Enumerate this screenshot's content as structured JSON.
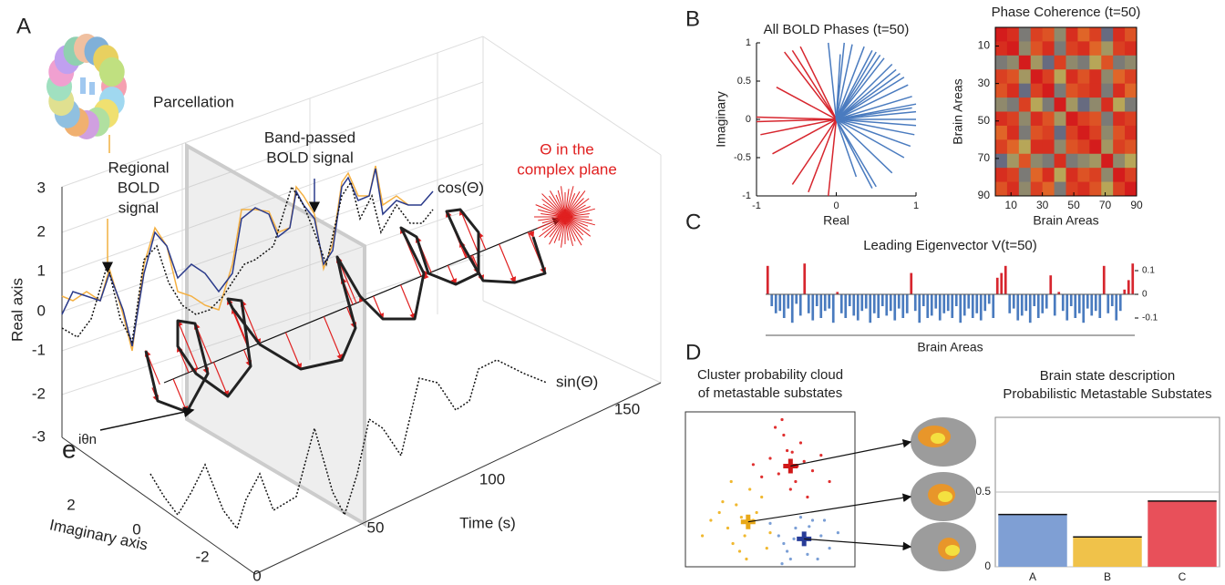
{
  "panels": {
    "letters": [
      "A",
      "B",
      "C",
      "D"
    ]
  },
  "panel_a": {
    "parcellation": "Parcellation",
    "regional": [
      "Regional",
      "BOLD",
      "signal"
    ],
    "bandpassed": [
      "Band-passed",
      "BOLD signal"
    ],
    "cos": "cos(Θ)",
    "sin": "sin(Θ)",
    "complex": [
      "Θ in the",
      "complex plane"
    ],
    "euler": {
      "base": "e",
      "exponent": "iθn"
    },
    "real_axis": "Real axis",
    "imag_axis": "Imaginary axis",
    "time_axis": "Time (s)",
    "real_ticks": [
      3,
      2,
      1,
      0,
      -1,
      -2,
      -3
    ],
    "imag_ticks": [
      2,
      0,
      -2
    ],
    "time_ticks": [
      0,
      50,
      100,
      150
    ]
  },
  "chart_data": [
    {
      "type": "vector",
      "title": "All BOLD Phases (t=50)",
      "xlabel": "Real",
      "ylabel": "Imaginary",
      "xlim": [
        -1,
        1
      ],
      "ylim": [
        -1,
        1
      ],
      "xticks": [
        -1,
        0,
        1
      ],
      "yticks": [
        -1,
        -0.5,
        0,
        0.5,
        1
      ],
      "series": [
        {
          "color": "#d7262e",
          "x": [
            -0.45,
            -0.55,
            -0.65,
            -0.75,
            -1,
            -1,
            -0.95,
            -0.8,
            -0.55,
            -0.35,
            -0.1
          ],
          "y": [
            0.95,
            0.9,
            0.88,
            0.42,
            0.03,
            -0.03,
            -0.2,
            -0.45,
            -0.85,
            -0.95,
            -1
          ]
        },
        {
          "color": "#4a7bbf",
          "x": [
            0.1,
            0.2,
            0.35,
            0.45,
            0.5,
            0.6,
            0.7,
            0.75,
            0.85,
            0.9,
            0.95,
            1,
            1,
            1,
            1,
            0.98,
            0.93,
            0.85,
            0.7,
            0.5,
            0.45,
            0.25,
            0.05,
            -0.1,
            0.55,
            0.8,
            0.95
          ],
          "y": [
            1,
            0.98,
            0.95,
            0.9,
            0.88,
            0.8,
            0.72,
            0.65,
            0.55,
            0.45,
            0.3,
            0.2,
            0.1,
            0,
            -0.08,
            -0.2,
            -0.35,
            -0.5,
            -0.7,
            -0.88,
            -0.9,
            -0.75,
            0.85,
            1,
            0.84,
            0.6,
            0.15
          ]
        }
      ]
    },
    {
      "type": "heatmap",
      "title": "Phase Coherence (t=50)",
      "xlabel": "Brain Areas",
      "ylabel": "Brain Areas",
      "xlim": [
        0,
        90
      ],
      "ylim": [
        0,
        90
      ],
      "y_reversed": true,
      "xticks": [
        10,
        30,
        50,
        70,
        90
      ],
      "yticks": [
        10,
        30,
        50,
        70,
        90
      ],
      "clim": [
        -1,
        1
      ],
      "colormap": [
        "#2b3f9e",
        "#f3d23a",
        "#d41c1c"
      ],
      "matrix": [
        [
          1,
          0.9,
          -0.6,
          0.8,
          0.7,
          -0.5,
          0.9,
          0.6,
          0.8,
          -0.7,
          0.9,
          0.7
        ],
        [
          0.9,
          1,
          -0.5,
          0.7,
          0.9,
          -0.6,
          0.8,
          0.9,
          0.6,
          -0.4,
          0.8,
          0.9
        ],
        [
          -0.6,
          -0.5,
          1,
          -0.4,
          -0.7,
          0.8,
          -0.5,
          -0.6,
          -0.3,
          0.7,
          -0.6,
          -0.5
        ],
        [
          0.8,
          0.7,
          -0.4,
          1,
          0.8,
          -0.3,
          0.9,
          0.7,
          0.9,
          -0.5,
          0.6,
          0.8
        ],
        [
          0.7,
          0.9,
          -0.7,
          0.8,
          1,
          -0.6,
          0.7,
          0.8,
          0.9,
          -0.6,
          0.9,
          0.6
        ],
        [
          -0.5,
          -0.6,
          0.8,
          -0.3,
          -0.6,
          1,
          -0.4,
          -0.7,
          -0.5,
          0.9,
          -0.3,
          -0.6
        ],
        [
          0.9,
          0.8,
          -0.5,
          0.9,
          0.7,
          -0.4,
          1,
          0.8,
          0.7,
          -0.6,
          0.9,
          0.8
        ],
        [
          0.6,
          0.9,
          -0.6,
          0.7,
          0.8,
          -0.7,
          0.8,
          1,
          0.8,
          -0.5,
          0.7,
          0.9
        ],
        [
          0.8,
          0.6,
          -0.3,
          0.9,
          0.9,
          -0.5,
          0.7,
          0.8,
          1,
          -0.4,
          0.8,
          0.7
        ],
        [
          -0.7,
          -0.4,
          0.7,
          -0.5,
          -0.6,
          0.9,
          -0.6,
          -0.5,
          -0.4,
          1,
          -0.5,
          -0.3
        ],
        [
          0.9,
          0.8,
          -0.6,
          0.6,
          0.9,
          -0.3,
          0.9,
          0.7,
          0.8,
          -0.5,
          1,
          0.8
        ],
        [
          0.7,
          0.9,
          -0.5,
          0.8,
          0.6,
          -0.6,
          0.8,
          0.9,
          0.7,
          -0.3,
          0.8,
          1
        ]
      ]
    },
    {
      "type": "bar",
      "title": "Leading Eigenvector V(t=50)",
      "xlabel": "Brain Areas",
      "ylim": [
        -0.15,
        0.15
      ],
      "yticks": [
        0.1,
        0,
        -0.1
      ],
      "positive_color": "#d7262e",
      "negative_color": "#4a7bbf",
      "values": [
        0.12,
        -0.05,
        -0.08,
        -0.07,
        -0.1,
        -0.06,
        -0.12,
        -0.04,
        -0.09,
        0.13,
        -0.08,
        -0.11,
        -0.05,
        -0.1,
        -0.07,
        -0.06,
        -0.12,
        0.01,
        -0.08,
        -0.1,
        -0.05,
        -0.09,
        -0.11,
        -0.07,
        -0.06,
        -0.12,
        -0.08,
        -0.1,
        -0.05,
        -0.09,
        -0.07,
        -0.11,
        -0.06,
        -0.1,
        -0.08,
        0.09,
        -0.07,
        -0.12,
        -0.05,
        -0.1,
        -0.09,
        -0.06,
        -0.11,
        -0.08,
        -0.07,
        -0.1,
        -0.05,
        -0.12,
        -0.09,
        -0.06,
        -0.1,
        -0.08,
        -0.11,
        -0.07,
        -0.04,
        -0.1,
        0.07,
        0.09,
        0.12,
        -0.08,
        -0.06,
        -0.11,
        -0.09,
        -0.07,
        -0.12,
        -0.05,
        -0.1,
        -0.08,
        -0.06,
        0.08,
        -0.09,
        0.01,
        -0.07,
        -0.11,
        -0.05,
        -0.1,
        -0.08,
        -0.12,
        -0.06,
        -0.09,
        -0.07,
        -0.1,
        0.12,
        -0.08,
        -0.05,
        -0.11,
        -0.07,
        0.02,
        0.06,
        0.13
      ]
    },
    {
      "type": "scatter",
      "title": [
        "Cluster probability cloud",
        "of metastable substates"
      ],
      "xlim": [
        0,
        1
      ],
      "ylim": [
        0,
        1
      ],
      "series": [
        {
          "color": "#e03030",
          "x": [
            0.5,
            0.55,
            0.6,
            0.65,
            0.7,
            0.75,
            0.58,
            0.68,
            0.45,
            0.8,
            0.62,
            0.53,
            0.72,
            0.66,
            0.57,
            0.85,
            0.4,
            0.63
          ],
          "y": [
            0.7,
            0.6,
            0.75,
            0.55,
            0.68,
            0.62,
            0.85,
            0.8,
            0.58,
            0.72,
            0.5,
            0.9,
            0.45,
            0.65,
            0.95,
            0.55,
            0.66,
            0.74
          ]
        },
        {
          "color": "#f0b830",
          "x": [
            0.2,
            0.25,
            0.3,
            0.35,
            0.4,
            0.45,
            0.28,
            0.38,
            0.15,
            0.5,
            0.32,
            0.22,
            0.42,
            0.36,
            0.27,
            0.1,
            0.48,
            0.33
          ],
          "y": [
            0.35,
            0.25,
            0.4,
            0.2,
            0.3,
            0.45,
            0.15,
            0.5,
            0.3,
            0.22,
            0.1,
            0.42,
            0.35,
            0.05,
            0.55,
            0.2,
            0.12,
            0.32
          ]
        },
        {
          "color": "#7b9fd6",
          "x": [
            0.55,
            0.6,
            0.65,
            0.7,
            0.75,
            0.8,
            0.62,
            0.72,
            0.5,
            0.85,
            0.68,
            0.58,
            0.78,
            0.9,
            0.64,
            0.73,
            0.82,
            0.57
          ],
          "y": [
            0.2,
            0.1,
            0.25,
            0.15,
            0.3,
            0.2,
            0.05,
            0.08,
            0.28,
            0.12,
            0.32,
            0.15,
            0.05,
            0.22,
            0.18,
            0.26,
            0.3,
            0.02
          ]
        },
        {
          "marker": "plus",
          "colors": [
            "#d01818",
            "#e8a818",
            "#283c98"
          ],
          "x": [
            0.62,
            0.37,
            0.7
          ],
          "y": [
            0.65,
            0.29,
            0.18
          ]
        }
      ]
    },
    {
      "type": "bar",
      "title": [
        "Brain state description",
        "Probabilistic Metastable Substates"
      ],
      "categories": [
        "A",
        "B",
        "C"
      ],
      "values": [
        0.35,
        0.2,
        0.44
      ],
      "colors": [
        "#7f9fd4",
        "#f0c24a",
        "#e8505a"
      ],
      "ylim": [
        0,
        1
      ],
      "yticks": [
        0,
        0.5
      ],
      "grid": true
    }
  ]
}
